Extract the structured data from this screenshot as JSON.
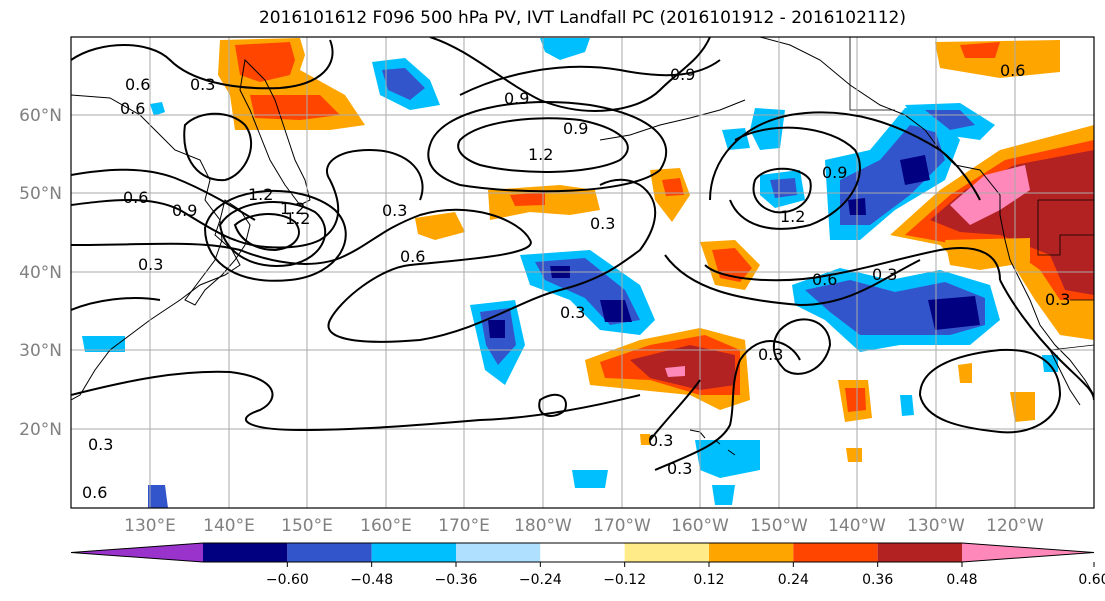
{
  "title": "2016101612 F096 500 hPa PV, IVT Landfall PC (2016101912 - 2016102112)",
  "map": {
    "lat_ticks": [
      "60°N",
      "50°N",
      "40°N",
      "30°N",
      "20°N"
    ],
    "lon_ticks": [
      "130°E",
      "140°E",
      "150°E",
      "160°E",
      "170°E",
      "180°W",
      "170°W",
      "160°W",
      "150°W",
      "140°W",
      "130°W",
      "120°W"
    ],
    "contour_labels": [
      "0.3",
      "0.6",
      "0.9",
      "1.2",
      "1.2",
      "0.9",
      "0.6",
      "0.9",
      "1.2",
      "1.2",
      "0.9",
      "0.6",
      "0.3",
      "0.3",
      "0.6",
      "0.3",
      "0.3",
      "0.3",
      "0.3",
      "0.3",
      "0.3",
      "0.6",
      "0.3",
      "0.3",
      "0.6",
      "0.9",
      "1.2",
      "0.6"
    ]
  },
  "colorbar": {
    "colors": [
      "#9933cc",
      "#000080",
      "#3355cc",
      "#00bfff",
      "#b0e0ff",
      "#ffffff",
      "#ffeb88",
      "#ffa500",
      "#ff4500",
      "#b22222",
      "#ff88bb"
    ],
    "labels": [
      "-0.60",
      "-0.48",
      "-0.36",
      "-0.24",
      "-0.12",
      "0.12",
      "0.24",
      "0.36",
      "0.48",
      "0.60"
    ]
  }
}
